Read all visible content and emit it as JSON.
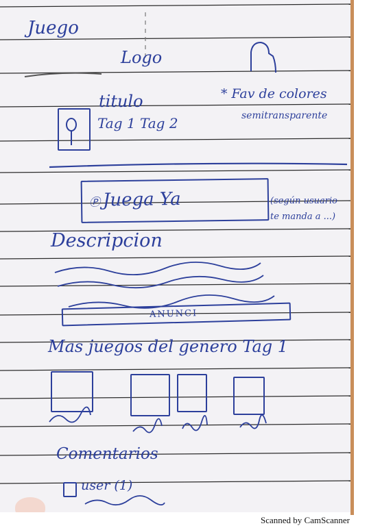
{
  "page": {
    "header": "Juego",
    "logo": "Logo",
    "title": "titulo",
    "tags": "Tag 1  Tag 2",
    "favorites_note": "* Fav de colores",
    "favorites_note_2": "semitransparente",
    "play_button": "Juega Ya",
    "play_note": "(según usuario te manda a ...)",
    "description_heading": "Descripcion",
    "ad_label": "ANUNCI",
    "more_games_heading": "Mas juegos del genero Tag 1",
    "comments_heading": "Comentarios",
    "comment_user": "user (1)"
  },
  "footer": {
    "scanner_label": "Scanned by CamScanner"
  },
  "colors": {
    "ink": "#2c3f9b",
    "paper": "#f3f2f5",
    "ruling": "#2b2b2b",
    "margin_edge": "#c98e5a"
  }
}
